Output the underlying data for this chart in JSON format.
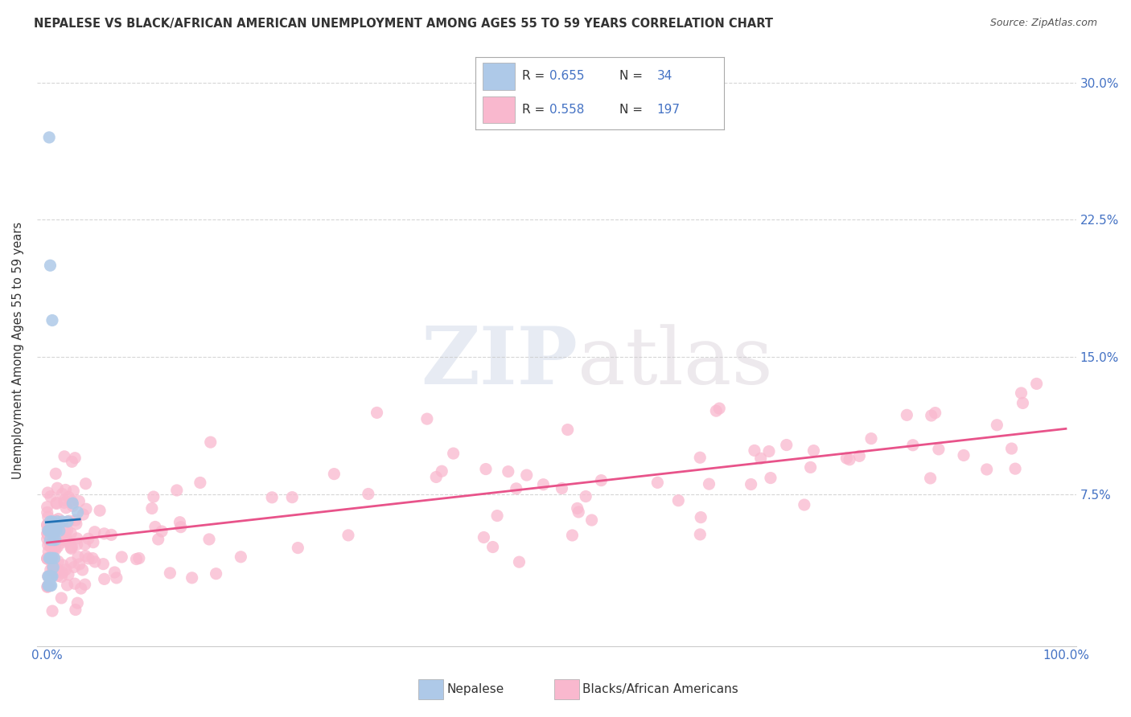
{
  "title": "NEPALESE VS BLACK/AFRICAN AMERICAN UNEMPLOYMENT AMONG AGES 55 TO 59 YEARS CORRELATION CHART",
  "source": "Source: ZipAtlas.com",
  "ylabel": "Unemployment Among Ages 55 to 59 years",
  "xlim": [
    -0.01,
    1.01
  ],
  "ylim": [
    -0.008,
    0.315
  ],
  "xtick_positions": [
    0.0,
    0.1,
    0.2,
    0.3,
    0.4,
    0.5,
    0.6,
    0.7,
    0.8,
    0.9,
    1.0
  ],
  "xticklabels": [
    "0.0%",
    "",
    "",
    "",
    "",
    "",
    "",
    "",
    "",
    "",
    "100.0%"
  ],
  "ytick_positions": [
    0.0,
    0.075,
    0.15,
    0.225,
    0.3
  ],
  "yticklabels_right": [
    "",
    "7.5%",
    "15.0%",
    "22.5%",
    "30.0%"
  ],
  "nepalese_color": "#aec9e8",
  "black_color": "#f9b8ce",
  "trend_nepalese_color": "#2171b5",
  "trend_black_color": "#e8538a",
  "background_color": "#ffffff",
  "grid_color": "#cccccc",
  "watermark_zip": "ZIP",
  "watermark_atlas": "atlas",
  "legend_box_color": "#e8f0fb",
  "legend_pink_color": "#f9b8ce",
  "tick_label_color": "#4472c4",
  "source_color": "#555555",
  "title_color": "#333333"
}
